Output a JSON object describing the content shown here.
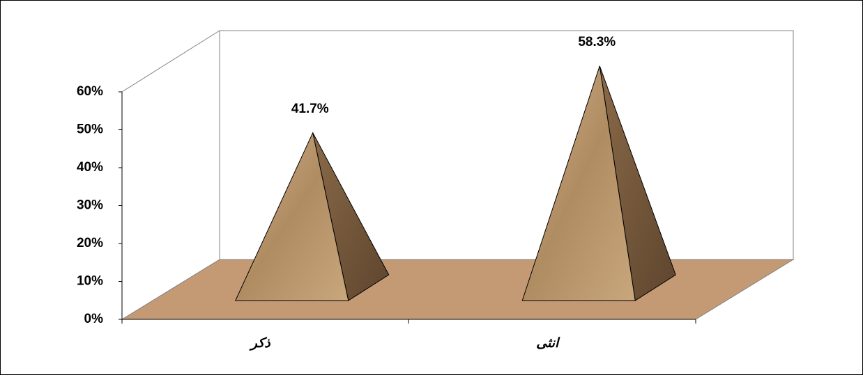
{
  "chart_data": {
    "type": "pyramid",
    "categories": [
      "ذكر",
      "انثى"
    ],
    "values": [
      41.7,
      58.3
    ],
    "value_labels": [
      "41.7%",
      "58.3%"
    ],
    "color": "#b8966a",
    "ylim": [
      0,
      60
    ],
    "yticks": [
      {
        "value": 0,
        "label": "0%"
      },
      {
        "value": 10,
        "label": "10%"
      },
      {
        "value": 20,
        "label": "20%"
      },
      {
        "value": 30,
        "label": "30%"
      },
      {
        "value": 40,
        "label": "40%"
      },
      {
        "value": 50,
        "label": "50%"
      },
      {
        "value": 60,
        "label": "60%"
      }
    ]
  }
}
